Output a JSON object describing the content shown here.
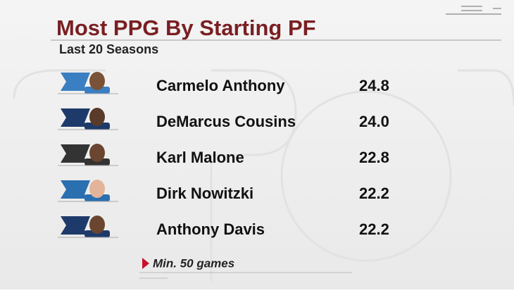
{
  "header": {
    "title": "Most PPG By Starting PF",
    "subtitle": "Last 20 Seasons"
  },
  "table": {
    "rows": [
      [
        "Carmelo Anthony",
        "24.8"
      ],
      [
        "DeMarcus Cousins",
        "24.0"
      ],
      [
        "Karl Malone",
        "22.8"
      ],
      [
        "Dirk Nowitzki",
        "22.2"
      ],
      [
        "Anthony Davis",
        "22.2"
      ]
    ]
  },
  "footnote": "Min. 50 games"
}
